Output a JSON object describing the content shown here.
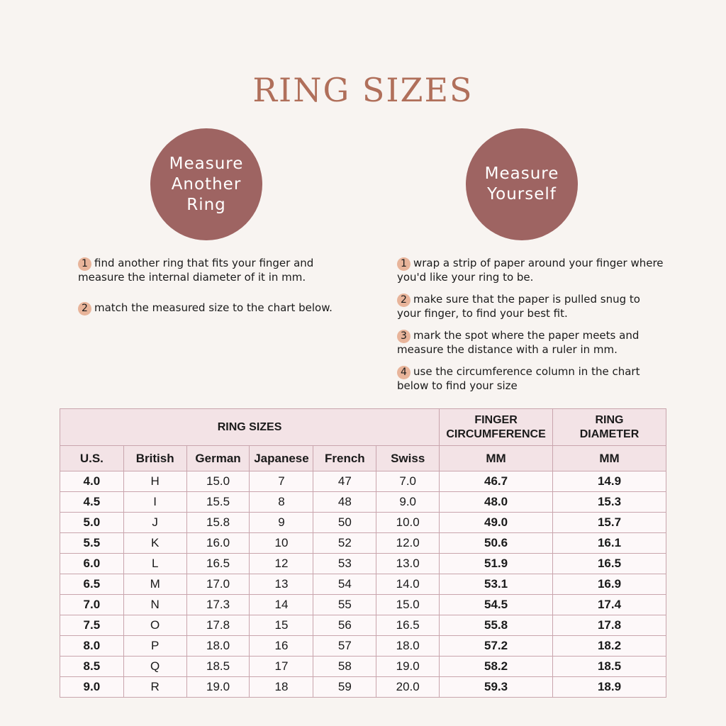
{
  "title": "RING SIZES",
  "left": {
    "circle": "Measure Another Ring",
    "steps": [
      {
        "num": "1",
        "text": "find another ring that fits your finger and measure the internal diameter of it in mm."
      },
      {
        "num": "2",
        "text": "match the measured size to the chart below."
      }
    ]
  },
  "right": {
    "circle": "Measure Yourself",
    "steps": [
      {
        "num": "1",
        "text": "wrap a strip of paper around your finger where you'd like your ring to be."
      },
      {
        "num": "2",
        "text": "make sure that the paper is pulled snug to your finger, to find your best fit."
      },
      {
        "num": "3",
        "text": "mark the spot where the paper meets and measure the distance with a ruler in mm."
      },
      {
        "num": "4",
        "text": "use the circumference column in the chart below to find your size"
      }
    ]
  },
  "table": {
    "group_headers": [
      "RING SIZES",
      "FINGER CIRCUMFERENCE",
      "RING DIAMETER"
    ],
    "columns": [
      "U.S.",
      "British",
      "German",
      "Japanese",
      "French",
      "Swiss",
      "MM",
      "MM"
    ],
    "rows": [
      [
        "4.0",
        "H",
        "15.0",
        "7",
        "47",
        "7.0",
        "46.7",
        "14.9"
      ],
      [
        "4.5",
        "I",
        "15.5",
        "8",
        "48",
        "9.0",
        "48.0",
        "15.3"
      ],
      [
        "5.0",
        "J",
        "15.8",
        "9",
        "50",
        "10.0",
        "49.0",
        "15.7"
      ],
      [
        "5.5",
        "K",
        "16.0",
        "10",
        "52",
        "12.0",
        "50.6",
        "16.1"
      ],
      [
        "6.0",
        "L",
        "16.5",
        "12",
        "53",
        "13.0",
        "51.9",
        "16.5"
      ],
      [
        "6.5",
        "M",
        "17.0",
        "13",
        "54",
        "14.0",
        "53.1",
        "16.9"
      ],
      [
        "7.0",
        "N",
        "17.3",
        "14",
        "55",
        "15.0",
        "54.5",
        "17.4"
      ],
      [
        "7.5",
        "O",
        "17.8",
        "15",
        "56",
        "16.5",
        "55.8",
        "17.8"
      ],
      [
        "8.0",
        "P",
        "18.0",
        "16",
        "57",
        "18.0",
        "57.2",
        "18.2"
      ],
      [
        "8.5",
        "Q",
        "18.5",
        "17",
        "58",
        "19.0",
        "58.2",
        "18.5"
      ],
      [
        "9.0",
        "R",
        "19.0",
        "18",
        "59",
        "20.0",
        "59.3",
        "18.9"
      ]
    ]
  }
}
